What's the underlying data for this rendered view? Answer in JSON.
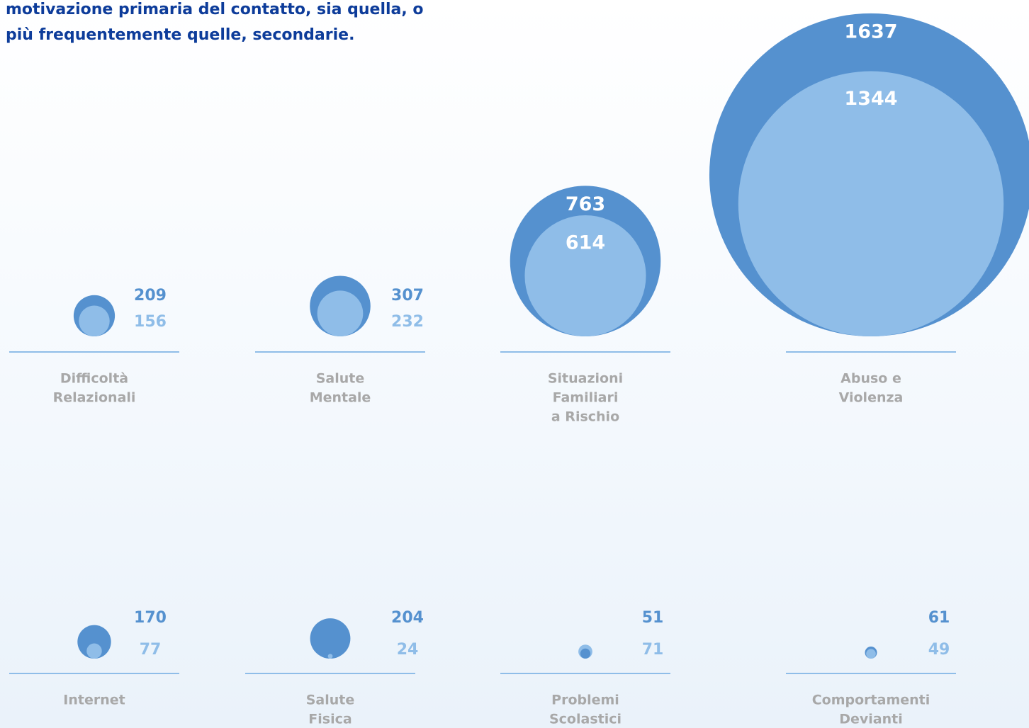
{
  "chart_data": {
    "type": "bubble",
    "title": [
      "motivazione primaria del contatto, sia quella, o",
      "più frequentemente quelle, secondarie."
    ],
    "categories": [
      [
        "Difficoltà",
        "Relazionali"
      ],
      [
        "Salute",
        "Mentale"
      ],
      [
        "Situazioni",
        "Familiari",
        "a Rischio"
      ],
      [
        "Abuso e",
        "Violenza"
      ],
      [
        "Internet"
      ],
      [
        "Salute",
        "Fisica"
      ],
      [
        "Problemi",
        "Scolastici"
      ],
      [
        "Comportamenti",
        "Devianti"
      ]
    ],
    "series": [
      {
        "color": "#5591cf",
        "values": [
          209,
          307,
          763,
          1637,
          170,
          204,
          51,
          61
        ]
      },
      {
        "color": "#8fbde8",
        "values": [
          156,
          232,
          614,
          1344,
          77,
          24,
          71,
          49
        ]
      }
    ]
  }
}
